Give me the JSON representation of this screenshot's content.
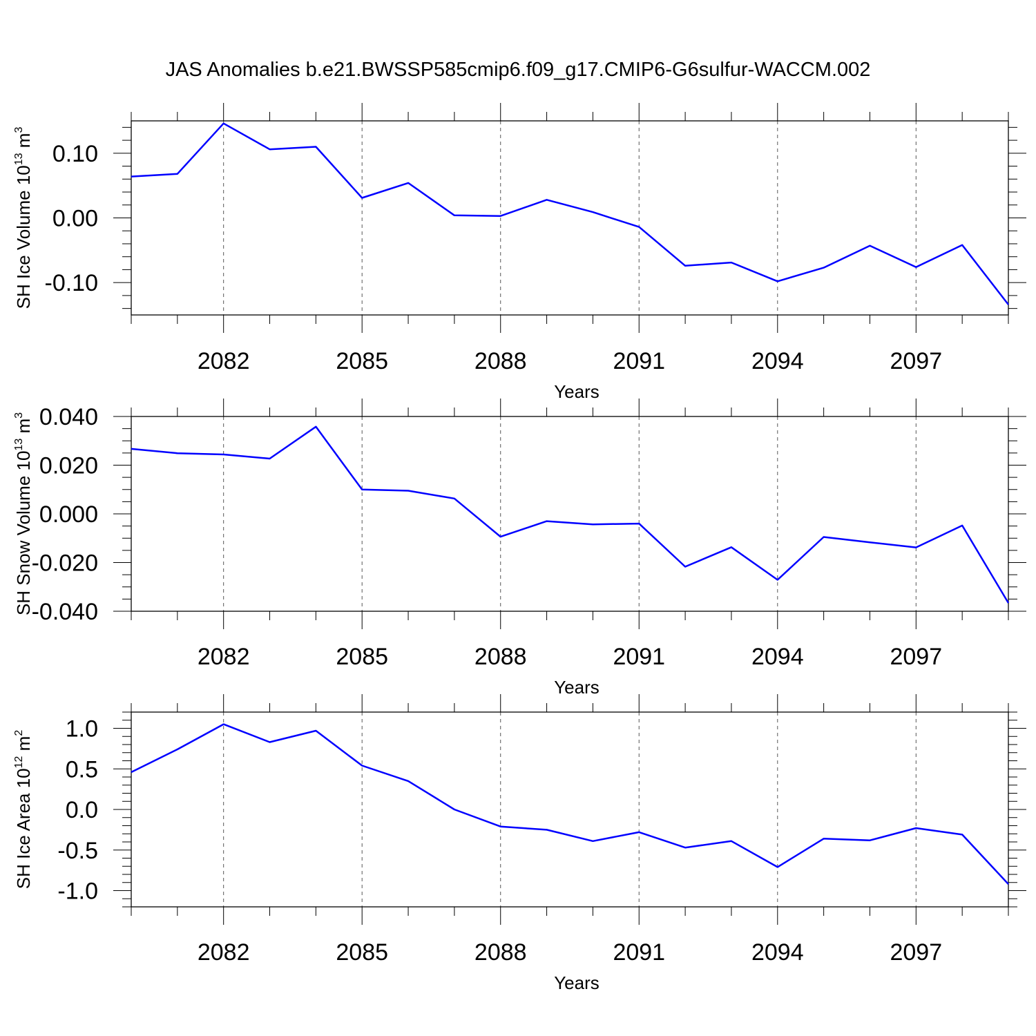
{
  "figure": {
    "title": "JAS Anomalies b.e21.BWSSP585cmip6.f09_g17.CMIP6-G6sulfur-WACCM.002",
    "line_color": "#0000ff"
  },
  "chart_data": [
    {
      "type": "line",
      "xlabel": "Years",
      "ylabel": {
        "text": "SH Ice Volume 10",
        "exp": "13",
        "unit": " m",
        "unit_exp": "3"
      },
      "xlim": [
        2080,
        2099
      ],
      "ylim": [
        -0.15,
        0.15
      ],
      "xticks": [
        2082,
        2085,
        2088,
        2091,
        2094,
        2097
      ],
      "xtick_labels": [
        "2082",
        "2085",
        "2088",
        "2091",
        "2094",
        "2097"
      ],
      "yticks": [
        0.1,
        0.0,
        -0.1
      ],
      "ytick_labels": [
        "0.10",
        "0.00",
        "-0.10"
      ],
      "ytick_minor": 0.02,
      "grid": "x dashed",
      "series": [
        {
          "x": [
            2080,
            2081,
            2082,
            2083,
            2084,
            2085,
            2086,
            2087,
            2088,
            2089,
            2090,
            2091,
            2092,
            2093,
            2094,
            2095,
            2096,
            2097,
            2098,
            2099
          ],
          "values": [
            0.064,
            0.068,
            0.146,
            0.106,
            0.11,
            0.031,
            0.054,
            0.004,
            0.003,
            0.028,
            0.009,
            -0.014,
            -0.074,
            -0.069,
            -0.098,
            -0.077,
            -0.043,
            -0.076,
            -0.042,
            -0.134
          ]
        }
      ]
    },
    {
      "type": "line",
      "xlabel": "Years",
      "ylabel": {
        "text": "SH Snow Volume 10",
        "exp": "13",
        "unit": " m",
        "unit_exp": "3"
      },
      "xlim": [
        2080,
        2099
      ],
      "ylim": [
        -0.04,
        0.04
      ],
      "xticks": [
        2082,
        2085,
        2088,
        2091,
        2094,
        2097
      ],
      "xtick_labels": [
        "2082",
        "2085",
        "2088",
        "2091",
        "2094",
        "2097"
      ],
      "yticks": [
        0.04,
        0.02,
        0.0,
        -0.02,
        -0.04
      ],
      "ytick_labels": [
        "0.040",
        "0.020",
        "0.000",
        "-0.020",
        "-0.040"
      ],
      "ytick_minor": 0.005,
      "grid": "x dashed",
      "series": [
        {
          "x": [
            2080,
            2081,
            2082,
            2083,
            2084,
            2085,
            2086,
            2087,
            2088,
            2089,
            2090,
            2091,
            2092,
            2093,
            2094,
            2095,
            2096,
            2097,
            2098,
            2099
          ],
          "values": [
            0.0267,
            0.0249,
            0.0244,
            0.0227,
            0.0358,
            0.01,
            0.0095,
            0.0063,
            -0.0094,
            -0.003,
            -0.0043,
            -0.004,
            -0.0217,
            -0.0137,
            -0.0271,
            -0.0095,
            -0.0117,
            -0.0138,
            -0.0048,
            -0.0366
          ]
        }
      ]
    },
    {
      "type": "line",
      "xlabel": "Years",
      "ylabel": {
        "text": "SH Ice Area 10",
        "exp": "12",
        "unit": " m",
        "unit_exp": "2"
      },
      "xlim": [
        2080,
        2099
      ],
      "ylim": [
        -1.2,
        1.2
      ],
      "xticks": [
        2082,
        2085,
        2088,
        2091,
        2094,
        2097
      ],
      "xtick_labels": [
        "2082",
        "2085",
        "2088",
        "2091",
        "2094",
        "2097"
      ],
      "yticks": [
        1.0,
        0.5,
        0.0,
        -0.5,
        -1.0
      ],
      "ytick_labels": [
        "1.0",
        "0.5",
        "0.0",
        "-0.5",
        "-1.0"
      ],
      "ytick_minor": 0.1,
      "grid": "x dashed",
      "series": [
        {
          "x": [
            2080,
            2081,
            2082,
            2083,
            2084,
            2085,
            2086,
            2087,
            2088,
            2089,
            2090,
            2091,
            2092,
            2093,
            2094,
            2095,
            2096,
            2097,
            2098,
            2099
          ],
          "values": [
            0.46,
            0.74,
            1.05,
            0.83,
            0.97,
            0.54,
            0.35,
            0.0,
            -0.21,
            -0.25,
            -0.39,
            -0.28,
            -0.47,
            -0.39,
            -0.71,
            -0.36,
            -0.38,
            -0.23,
            -0.31,
            -0.92
          ]
        }
      ]
    }
  ]
}
